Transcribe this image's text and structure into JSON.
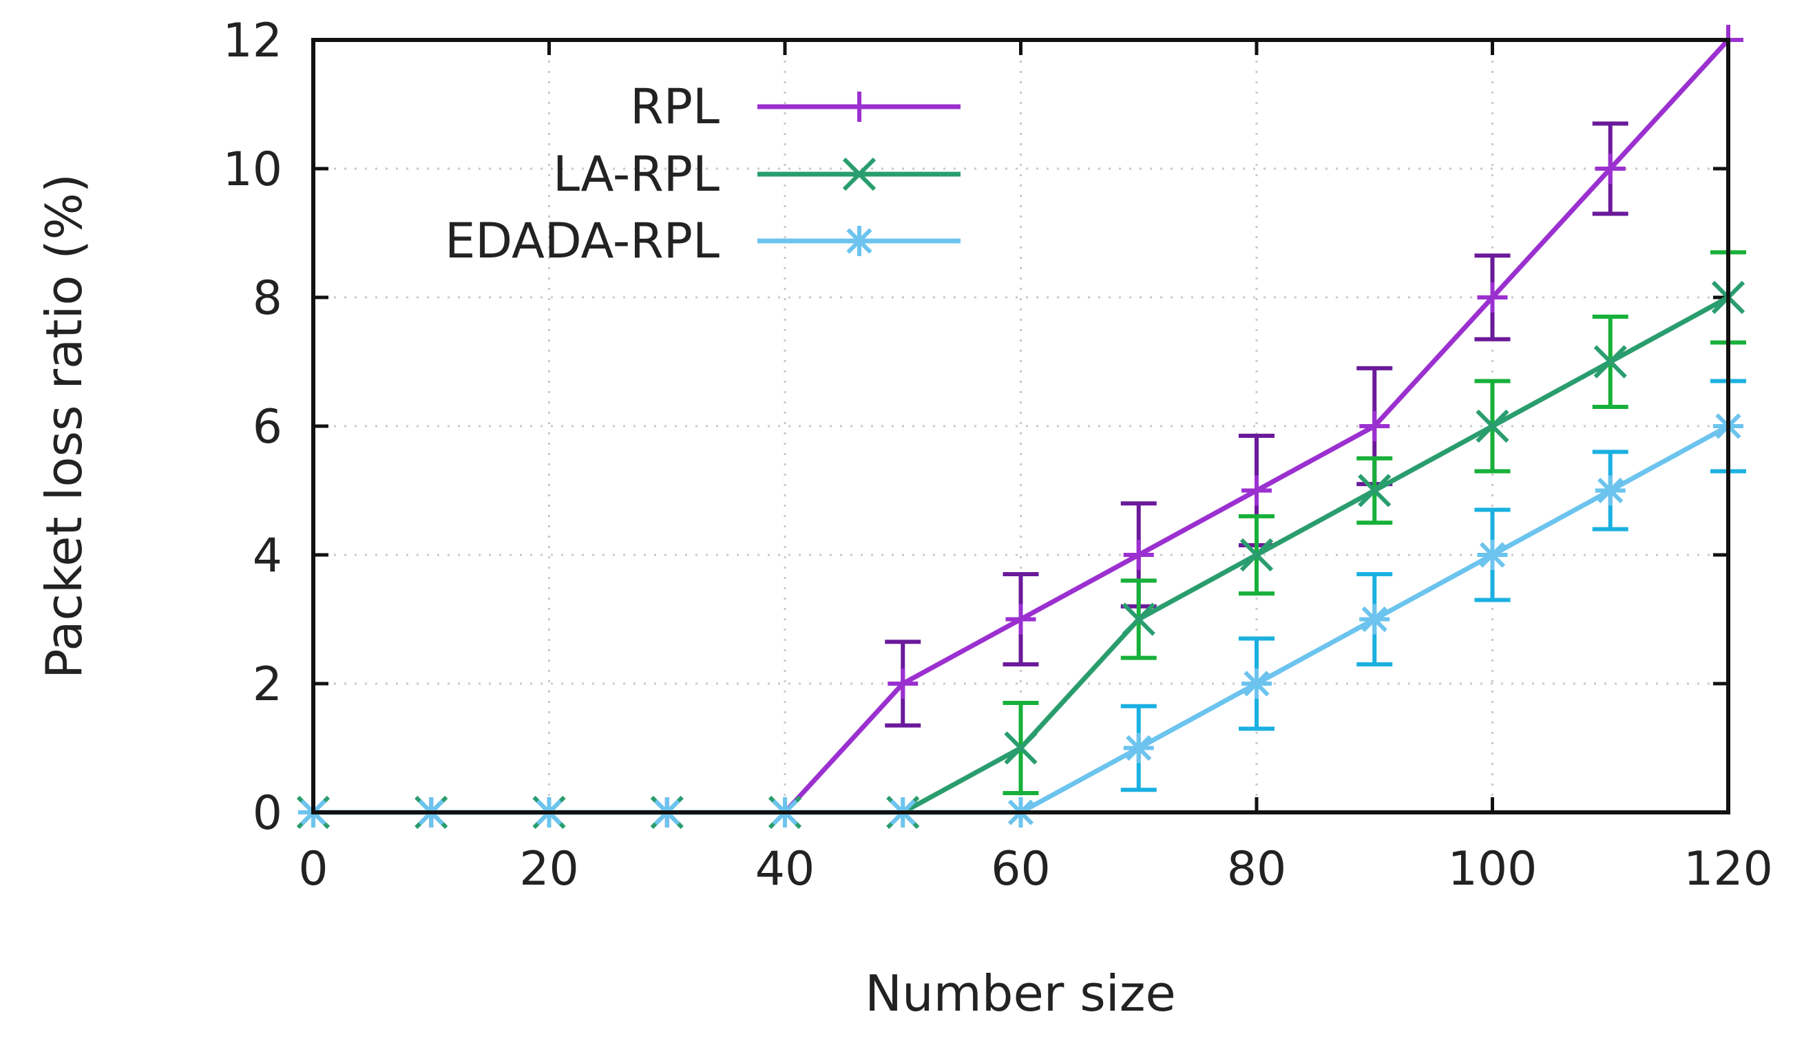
{
  "chart_data": {
    "type": "line",
    "title": "",
    "xlabel": "Number size",
    "ylabel": "Packet loss ratio (%)",
    "xlim": [
      0,
      120
    ],
    "ylim": [
      0,
      12
    ],
    "xticks": [
      0,
      20,
      40,
      60,
      80,
      100,
      120
    ],
    "yticks": [
      0,
      2,
      4,
      6,
      8,
      10,
      12
    ],
    "grid": true,
    "legend_position": "top-left",
    "series": [
      {
        "name": "RPL",
        "color": "#9b30d0",
        "errcolor": "#6a1a9a",
        "marker": "plus",
        "x": [
          0,
          10,
          20,
          30,
          40,
          50,
          60,
          70,
          80,
          90,
          100,
          110,
          120
        ],
        "y": [
          0,
          0,
          0,
          0,
          0,
          2,
          3,
          4,
          5,
          6,
          8,
          10,
          12
        ],
        "err": [
          0,
          0,
          0,
          0,
          0,
          0.65,
          0.7,
          0.8,
          0.85,
          0.9,
          0.65,
          0.7,
          0
        ]
      },
      {
        "name": "LA-RPL",
        "color": "#2a9d6e",
        "errcolor": "#17b03a",
        "marker": "x",
        "x": [
          0,
          10,
          20,
          30,
          40,
          50,
          60,
          70,
          80,
          90,
          100,
          110,
          120
        ],
        "y": [
          0,
          0,
          0,
          0,
          0,
          0,
          1,
          3,
          4,
          5,
          6,
          7,
          8
        ],
        "err": [
          0,
          0,
          0,
          0,
          0,
          0,
          0.7,
          0.6,
          0.6,
          0.5,
          0.7,
          0.7,
          0.7
        ]
      },
      {
        "name": "EDADA-RPL",
        "color": "#6cc4ee",
        "errcolor": "#1bb0e0",
        "marker": "star",
        "x": [
          0,
          10,
          20,
          30,
          40,
          50,
          60,
          70,
          80,
          90,
          100,
          110,
          120
        ],
        "y": [
          0,
          0,
          0,
          0,
          0,
          0,
          0,
          1,
          2,
          3,
          4,
          5,
          6
        ],
        "err": [
          0,
          0,
          0,
          0,
          0,
          0,
          0,
          0.65,
          0.7,
          0.7,
          0.7,
          0.6,
          0.7
        ]
      }
    ]
  }
}
